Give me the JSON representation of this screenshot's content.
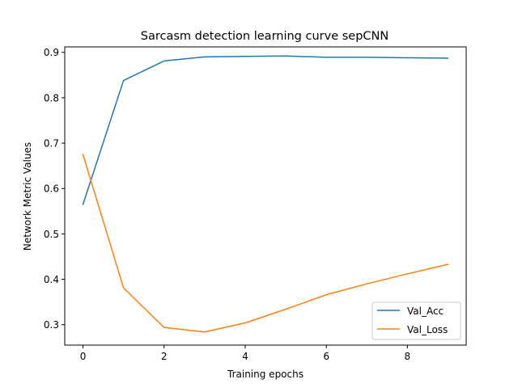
{
  "chart_data": {
    "type": "line",
    "title": "Sarcasm detection learning curve sepCNN",
    "xlabel": "Training epochs",
    "ylabel": "Network Metric Values",
    "x": [
      0,
      1,
      2,
      3,
      4,
      5,
      6,
      7,
      8,
      9
    ],
    "xlim": [
      -0.45,
      9.45
    ],
    "ylim": [
      0.255,
      0.912
    ],
    "xticks": [
      0,
      2,
      4,
      6,
      8
    ],
    "yticks": [
      0.3,
      0.4,
      0.5,
      0.6,
      0.7,
      0.8,
      0.9
    ],
    "xtick_labels": [
      "0",
      "2",
      "4",
      "6",
      "8"
    ],
    "ytick_labels": [
      "0.3",
      "0.4",
      "0.5",
      "0.6",
      "0.7",
      "0.8",
      "0.9"
    ],
    "grid": false,
    "legend_position": "lower-right",
    "series": [
      {
        "name": "Val_Acc",
        "color": "#1f77b4",
        "values": [
          0.565,
          0.838,
          0.881,
          0.89,
          0.891,
          0.892,
          0.889,
          0.889,
          0.888,
          0.887
        ]
      },
      {
        "name": "Val_Loss",
        "color": "#ff7f0e",
        "values": [
          0.675,
          0.381,
          0.294,
          0.284,
          0.304,
          0.334,
          0.366,
          0.39,
          0.412,
          0.433
        ]
      }
    ]
  }
}
